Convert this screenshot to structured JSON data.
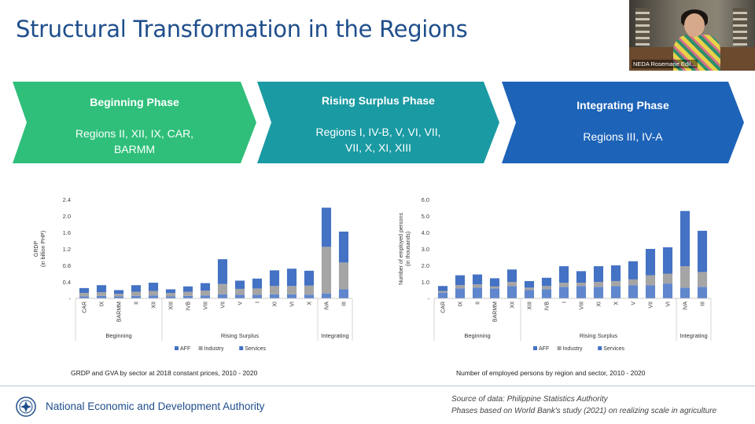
{
  "slide_title": "Structural Transformation in the Regions",
  "video_feed": {
    "participant_label": "NEDA Rosemarie Edil..."
  },
  "phases": [
    {
      "title": "Beginning Phase",
      "regions_line1": "Regions II, XII, IX, CAR,",
      "regions_line2": "BARMM",
      "color": "#2fbf7a"
    },
    {
      "title": "Rising Surplus Phase",
      "regions_line1": "Regions I, IV-B, V, VI, VII,",
      "regions_line2": "VII, X, XI, XIII",
      "color": "#1a9aa3"
    },
    {
      "title": "Integrating Phase",
      "regions_line1": "Regions III, IV-A",
      "regions_line2": "",
      "color": "#1d63b8"
    }
  ],
  "colors": {
    "aff": "#4472c4",
    "industry": "#a5a5a5",
    "services": "#4472c4"
  },
  "chart_data": [
    {
      "type": "bar",
      "stacked": true,
      "title": "GRDP and GVA by sector at 2018 constant prices, 2010 - 2020",
      "ylabel": "GRDP\n(in billion PHP)",
      "ylabel_line1": "GRDP",
      "ylabel_line2": "(in billion PHP)",
      "ylim": [
        0,
        2.4
      ],
      "yticks": [
        "2.4",
        "2.0",
        "1.6",
        "1.2",
        "0.8",
        "0.4",
        "-"
      ],
      "ytick_values": [
        2.4,
        2.0,
        1.6,
        1.2,
        0.8,
        0.4,
        0
      ],
      "categories": [
        "CAR",
        "IX",
        "BARMM",
        "II",
        "XII",
        "XIII",
        "IVB",
        "VIII",
        "VII",
        "V",
        "I",
        "XI",
        "VI",
        "X",
        "IVA",
        "III"
      ],
      "groups": [
        {
          "label": "Beginning",
          "count": 5
        },
        {
          "label": "Rising Surplus",
          "count": 9
        },
        {
          "label": "Integrating",
          "count": 2
        }
      ],
      "series": [
        {
          "name": "AFF",
          "values": [
            0.05,
            0.06,
            0.05,
            0.06,
            0.07,
            0.05,
            0.06,
            0.07,
            0.1,
            0.09,
            0.09,
            0.1,
            0.1,
            0.09,
            0.12,
            0.22
          ]
        },
        {
          "name": "Industry",
          "values": [
            0.08,
            0.09,
            0.06,
            0.1,
            0.11,
            0.08,
            0.1,
            0.12,
            0.25,
            0.14,
            0.15,
            0.2,
            0.2,
            0.22,
            1.13,
            0.65
          ]
        },
        {
          "name": "Services",
          "values": [
            0.12,
            0.17,
            0.09,
            0.16,
            0.2,
            0.09,
            0.13,
            0.18,
            0.6,
            0.2,
            0.24,
            0.38,
            0.42,
            0.36,
            0.95,
            0.75
          ]
        }
      ],
      "legend": [
        "AFF",
        "Industry",
        "Services"
      ]
    },
    {
      "type": "bar",
      "stacked": true,
      "title": "Number of employed persons by region and sector, 2010 - 2020",
      "ylabel_line1": "Number of employed persons",
      "ylabel_line2": "(in thousands)",
      "ylim": [
        0,
        6.0
      ],
      "yticks": [
        "6.0",
        "5.0",
        "4.0",
        "3.0",
        "2.0",
        "1.0",
        "-"
      ],
      "ytick_values": [
        6.0,
        5.0,
        4.0,
        3.0,
        2.0,
        1.0,
        0
      ],
      "categories": [
        "CAR",
        "IX",
        "II",
        "BARMM",
        "XII",
        "XIII",
        "IVB",
        "I",
        "VIII",
        "XI",
        "X",
        "V",
        "VII",
        "VI",
        "IVA",
        "III"
      ],
      "groups": [
        {
          "label": "Beginning",
          "count": 5
        },
        {
          "label": "Rising Surplus",
          "count": 9
        },
        {
          "label": "Integrating",
          "count": 2
        }
      ],
      "series": [
        {
          "name": "AFF",
          "values": [
            0.35,
            0.6,
            0.65,
            0.6,
            0.75,
            0.5,
            0.55,
            0.7,
            0.75,
            0.7,
            0.75,
            0.8,
            0.8,
            0.9,
            0.65,
            0.7
          ]
        },
        {
          "name": "Industry",
          "values": [
            0.1,
            0.2,
            0.2,
            0.12,
            0.25,
            0.15,
            0.2,
            0.25,
            0.2,
            0.3,
            0.3,
            0.35,
            0.6,
            0.6,
            1.3,
            0.9
          ]
        },
        {
          "name": "Services",
          "values": [
            0.3,
            0.6,
            0.6,
            0.5,
            0.75,
            0.4,
            0.5,
            1.0,
            0.7,
            0.95,
            0.95,
            1.1,
            1.6,
            1.6,
            3.35,
            2.5
          ]
        }
      ],
      "legend": [
        "AFF",
        "Industry",
        "Services"
      ]
    }
  ],
  "footer": {
    "agency": "National Economic and Development Authority",
    "source_line1": "Source of data: Philippine Statistics Authority",
    "source_line2": "Phases based on World Bank's study (2021) on realizing scale in agriculture"
  }
}
